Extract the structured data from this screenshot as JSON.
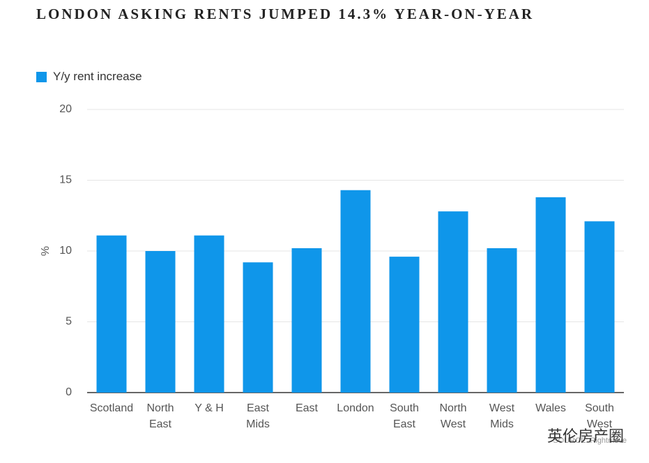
{
  "chart_data": {
    "type": "bar",
    "title": "LONDON ASKING RENTS JUMPED 14.3% YEAR-ON-YEAR",
    "y_label": "%",
    "categories": [
      "Scotland",
      "North East",
      "Y & H",
      "East Mids",
      "East",
      "London",
      "South East",
      "North West",
      "West Mids",
      "Wales",
      "South West"
    ],
    "series": [
      {
        "name": "Y/y rent increase",
        "color": "#0f96ea",
        "values": [
          11.1,
          10.0,
          11.1,
          9.2,
          10.2,
          14.3,
          9.6,
          12.8,
          10.2,
          13.8,
          12.1
        ]
      }
    ],
    "ylim": [
      0,
      20
    ],
    "yticks": [
      0,
      5,
      10,
      15,
      20
    ],
    "grid": true,
    "source": "SOURCE: Rightmove",
    "watermark": "英伦房产圈"
  }
}
